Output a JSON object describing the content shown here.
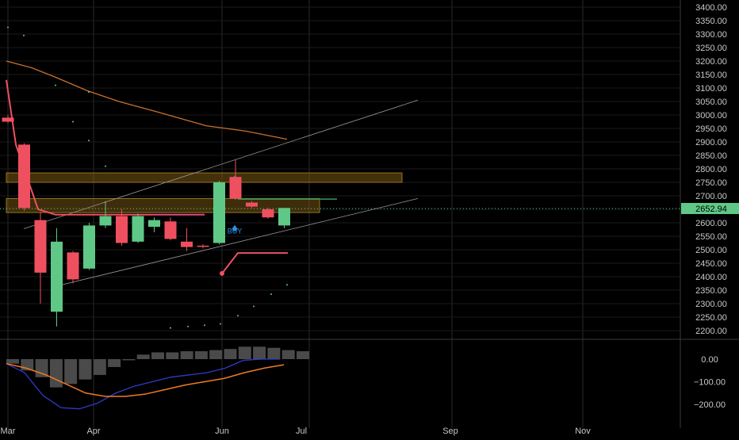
{
  "chart_data": [
    {
      "type": "candlestick",
      "x_labels": [
        "Mar",
        "Apr",
        "Jun",
        "Jul",
        "Sep",
        "Nov"
      ],
      "y_ticks": [
        2200,
        2250,
        2300,
        2350,
        2400,
        2450,
        2500,
        2550,
        2600,
        2650,
        2700,
        2750,
        2800,
        2850,
        2900,
        2950,
        3000,
        3050,
        3100,
        3150,
        3200,
        3250,
        3300,
        3350,
        3400
      ],
      "y_tick_labels": [
        "2200.00",
        "2250.00",
        "2300.00",
        "2350.00",
        "2400.00",
        "2450.00",
        "2500.00",
        "2550.00",
        "2600.00",
        "2650.00",
        "2700.00",
        "2750.00",
        "2800.00",
        "2850.00",
        "2900.00",
        "2950.00",
        "3000.00",
        "3050.00",
        "3100.00",
        "3150.00",
        "3200.00",
        "3250.00",
        "3300.00",
        "3350.00",
        "3400.00"
      ],
      "ylim": [
        2180,
        3410
      ],
      "last_price": 2652.94,
      "last_price_label": "2652.94",
      "candles": [
        {
          "o": 2990,
          "h": 3000,
          "l": 2970,
          "c": 2975
        },
        {
          "o": 2890,
          "h": 2895,
          "l": 2645,
          "c": 2655
        },
        {
          "o": 2610,
          "h": 2640,
          "l": 2300,
          "c": 2415
        },
        {
          "o": 2270,
          "h": 2580,
          "l": 2215,
          "c": 2530
        },
        {
          "o": 2490,
          "h": 2495,
          "l": 2375,
          "c": 2390
        },
        {
          "o": 2430,
          "h": 2600,
          "l": 2425,
          "c": 2590
        },
        {
          "o": 2590,
          "h": 2680,
          "l": 2580,
          "c": 2625
        },
        {
          "o": 2625,
          "h": 2650,
          "l": 2515,
          "c": 2525
        },
        {
          "o": 2530,
          "h": 2635,
          "l": 2525,
          "c": 2625
        },
        {
          "o": 2585,
          "h": 2620,
          "l": 2565,
          "c": 2610
        },
        {
          "o": 2605,
          "h": 2620,
          "l": 2535,
          "c": 2540
        },
        {
          "o": 2530,
          "h": 2580,
          "l": 2495,
          "c": 2510
        },
        {
          "o": 2515,
          "h": 2520,
          "l": 2505,
          "c": 2512
        },
        {
          "o": 2525,
          "h": 2755,
          "l": 2520,
          "c": 2750
        },
        {
          "o": 2770,
          "h": 2835,
          "l": 2685,
          "c": 2690
        },
        {
          "o": 2675,
          "h": 2680,
          "l": 2655,
          "c": 2660
        },
        {
          "o": 2650,
          "h": 2655,
          "l": 2615,
          "c": 2620
        },
        {
          "o": 2590,
          "h": 2655,
          "l": 2580,
          "c": 2655
        }
      ],
      "buy_signal_label": "BUY",
      "macd": {
        "y_ticks": [
          0,
          -100,
          -200
        ],
        "y_tick_labels": [
          "0.00",
          "−100.00",
          "−200.00"
        ],
        "ylim": [
          -240,
          50
        ],
        "histogram": [
          -20,
          -50,
          -80,
          -125,
          -110,
          -90,
          -70,
          -35,
          -5,
          20,
          30,
          30,
          35,
          35,
          40,
          45,
          55,
          55,
          50,
          40,
          35
        ],
        "macd_line": [
          -20,
          -60,
          -160,
          -215,
          -220,
          -195,
          -150,
          -120,
          -100,
          -80,
          -70,
          -60,
          -40,
          -5,
          0,
          0
        ],
        "signal_line": [
          -20,
          -40,
          -70,
          -110,
          -150,
          -165,
          -165,
          -155,
          -135,
          -115,
          -100,
          -85,
          -60,
          -40,
          -25
        ]
      },
      "colors": {
        "bull": "#5fc887",
        "bear": "#ef5060",
        "grid": "#2a2a2a",
        "axis_text": "#c8c8c8",
        "ma_line": "#c8702a",
        "zone": "#7a5a14",
        "macd_line": "#2f3cc8",
        "signal_line": "#f07a28",
        "histogram": "#4a4a4a",
        "buy": "#2c8ee8",
        "price_tag": "#5fc887"
      }
    }
  ]
}
